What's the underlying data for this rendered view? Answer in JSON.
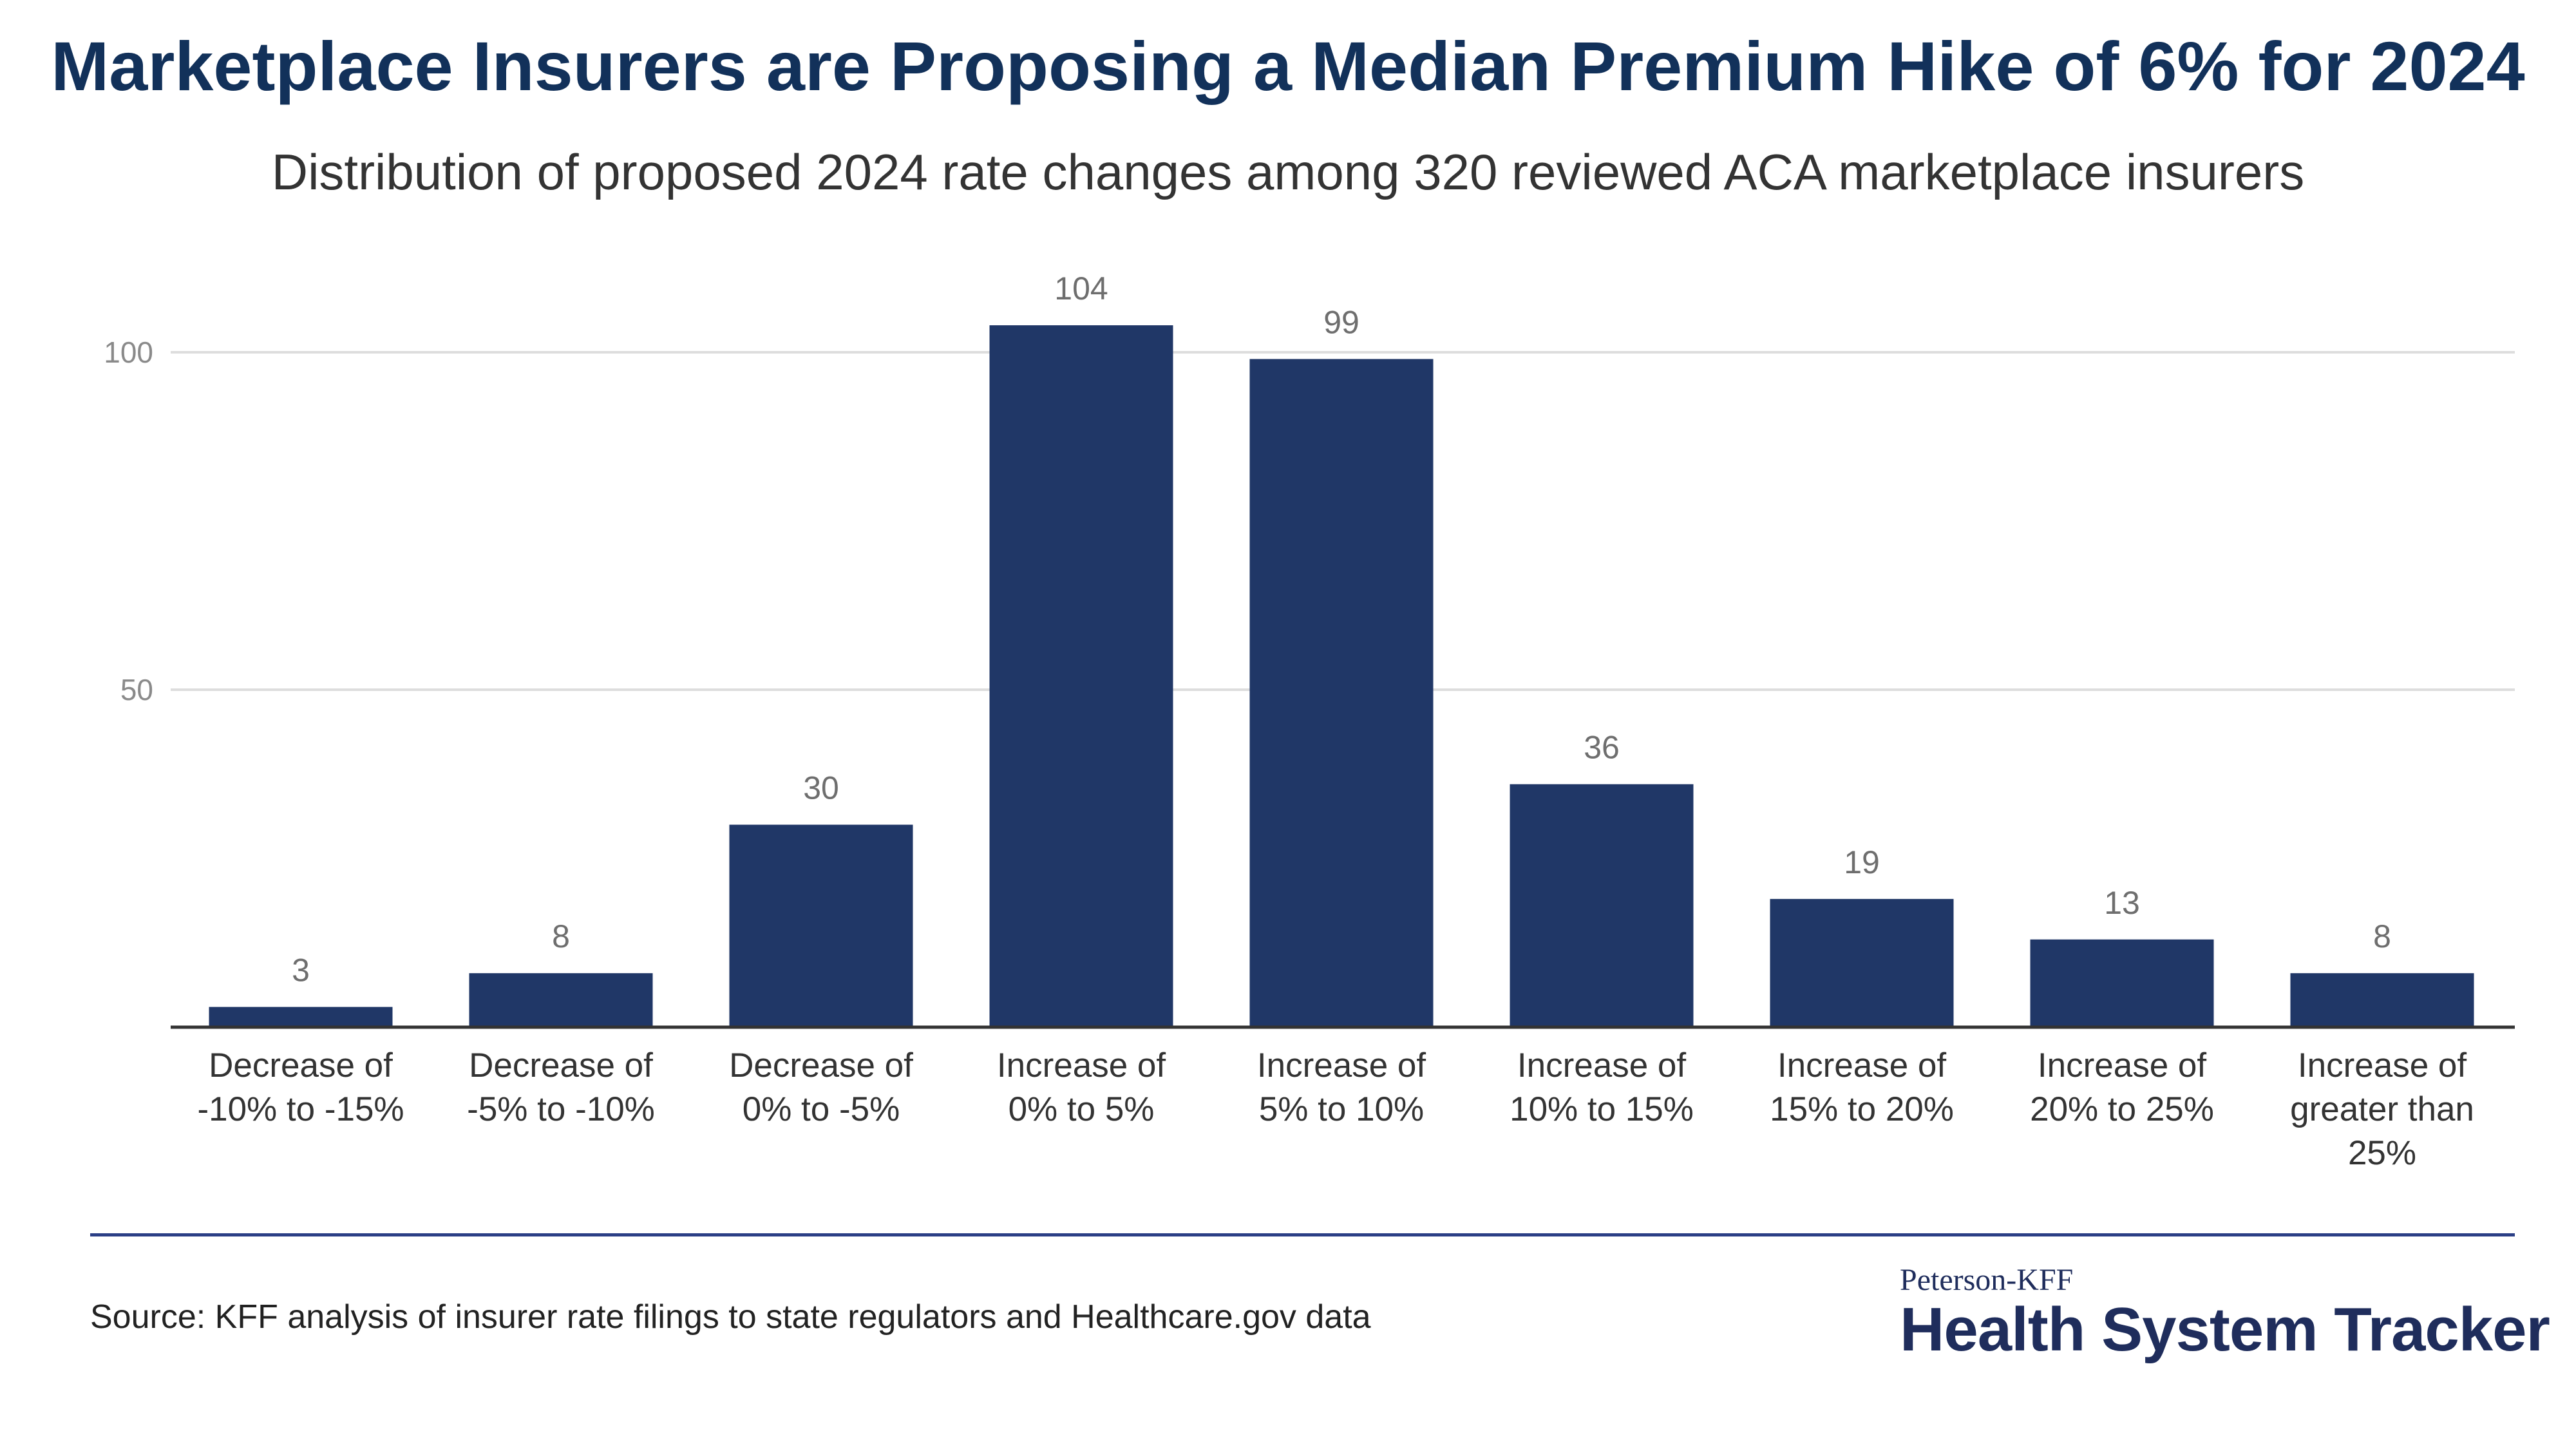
{
  "title": "Marketplace Insurers are Proposing a Median Premium Hike of 6% for 2024",
  "subtitle": "Distribution of proposed 2024 rate changes among 320 reviewed ACA marketplace insurers",
  "source": "Source: KFF analysis of insurer rate filings to state regulators and Healthcare.gov data",
  "brand": {
    "top": "Peterson-KFF",
    "main": "Health System Tracker"
  },
  "colors": {
    "bar": "#203767",
    "title": "#12315a",
    "grid": "#dddddd",
    "axis": "#333333",
    "footer_rule": "#2b3f86"
  },
  "chart_data": {
    "type": "bar",
    "title": "Marketplace Insurers are Proposing a Median Premium Hike of 6% for 2024",
    "subtitle": "Distribution of proposed 2024 rate changes among 320 reviewed ACA marketplace insurers",
    "xlabel": "",
    "ylabel": "",
    "ylim": [
      0,
      110
    ],
    "yticks": [
      50,
      100
    ],
    "grid": true,
    "categories": [
      [
        "Decrease of",
        "-10% to -15%"
      ],
      [
        "Decrease of",
        "-5% to -10%"
      ],
      [
        "Decrease of",
        "0% to -5%"
      ],
      [
        "Increase of",
        "0% to 5%"
      ],
      [
        "Increase of",
        "5% to 10%"
      ],
      [
        "Increase of",
        "10% to 15%"
      ],
      [
        "Increase of",
        "15% to 20%"
      ],
      [
        "Increase of",
        "20% to 25%"
      ],
      [
        "Increase of",
        "greater than",
        "25%"
      ]
    ],
    "values": [
      3,
      8,
      30,
      104,
      99,
      36,
      19,
      13,
      8
    ]
  }
}
